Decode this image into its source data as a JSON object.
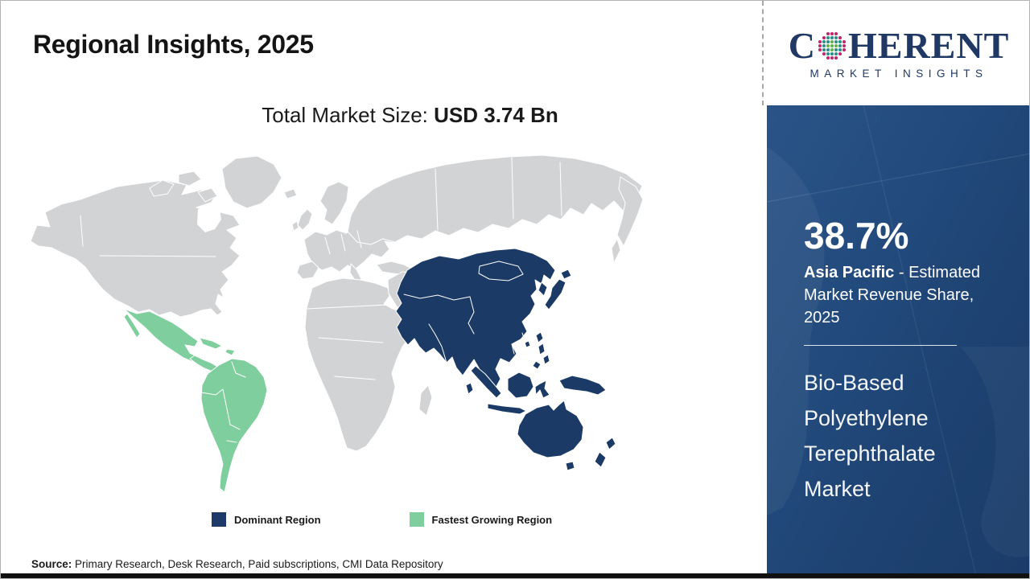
{
  "header": {
    "title": "Regional Insights, 2025"
  },
  "subtitle": {
    "label": "Total Market Size: ",
    "value": "USD 3.74 Bn"
  },
  "logo": {
    "first_letter": "C",
    "rest": "HERENT",
    "tagline": "MARKET INSIGHTS",
    "text_color": "#1f3864",
    "dot_colors": {
      "outer": "#c0256d",
      "inner": "#2a8f8a",
      "center": "#62b346"
    }
  },
  "map": {
    "colors": {
      "base": "#d2d3d5",
      "dominant": "#1b3a66",
      "fastest": "#7ecf9d",
      "border": "#ffffff"
    }
  },
  "legend": {
    "items": [
      {
        "label": "Dominant Region",
        "color": "#1e3a68"
      },
      {
        "label": "Fastest Growing Region",
        "color": "#7ecf9d"
      }
    ]
  },
  "sidebar": {
    "bg_color": "#1f4574",
    "share_value": "38.7%",
    "region_name": "Asia Pacific",
    "region_desc": " - Estimated Market Revenue Share, 2025",
    "market_name": "Bio-Based Polyethylene Terephthalate Market"
  },
  "source": {
    "label": "Source:",
    "text": " Primary Research, Desk Research, Paid subscriptions, CMI Data Repository"
  }
}
